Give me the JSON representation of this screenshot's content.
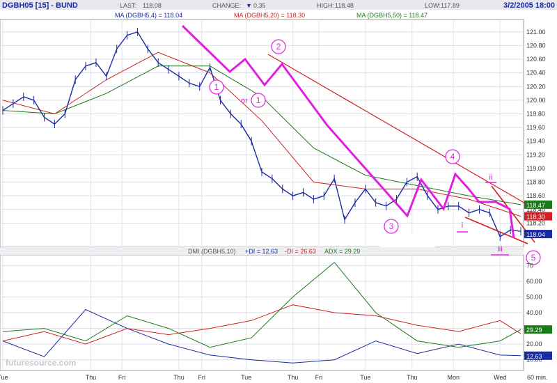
{
  "header": {
    "symbol": "DGBH05 [15] - BUND",
    "last_label": "LAST:",
    "last_value": "118.08",
    "change_label": "CHANGE:",
    "change_arrow": "▼",
    "change_value": "0.35",
    "high_label": "HIGH:",
    "high_value": "118.48",
    "low_label": "LOW:",
    "low_value": "117.89",
    "datetime": "3/2/2005 18:00"
  },
  "price_legend": {
    "ma4": "MA (DGBH5,4) = 118.04",
    "ma20": "MA (DGBH5,20) = 118.30",
    "ma50": "MA (DGBH5,50) = 118.47"
  },
  "dmi_legend": {
    "base": "DMI (DGBH5,10)",
    "pdi": "+DI = 12.63",
    "mdi": "-DI = 26.63",
    "adx": "ADX = 29.29"
  },
  "watermark": "futuresource.com",
  "price_axis": {
    "ticks": [
      "121.00",
      "120.80",
      "120.60",
      "120.40",
      "120.20",
      "120.00",
      "119.80",
      "119.60",
      "119.40",
      "119.20",
      "119.00",
      "118.80",
      "118.60",
      "118.40",
      "118.20"
    ],
    "flags": [
      {
        "label": "118.47",
        "color": "#1a7a1a"
      },
      {
        "label": "118.30",
        "color": "#d02020"
      },
      {
        "label": "118.04",
        "color": "#1a2aa0"
      }
    ]
  },
  "dmi_axis": {
    "ticks": [
      "70",
      "60.00",
      "50.00",
      "40.00",
      "30.00",
      "20.00",
      "10.00"
    ],
    "flags": [
      {
        "label": "29.29",
        "color": "#1a7a1a"
      },
      {
        "label": "12.63",
        "color": "#1a2aa0"
      }
    ]
  },
  "x_axis": {
    "labels": [
      "Tue",
      "Thu",
      "Fri",
      "Thu",
      "Fri",
      "Tue",
      "Thu",
      "Fri",
      "Tue",
      "Thu",
      "Mon",
      "Wed"
    ],
    "interval": "60 min."
  },
  "annotations": {
    "wave1": "1",
    "or_text": "or",
    "wave1_alt": "1",
    "wave2": "2",
    "wave3": "3",
    "wave4": "4",
    "wave5": "5",
    "sub_i": "i",
    "sub_ii": "ii",
    "sub_iii": "iii"
  },
  "colors": {
    "price": "#1a2aa0",
    "ma20": "#d02020",
    "ma50": "#1a7a1a",
    "elliott": "#e020e0",
    "trend": "#d02020"
  },
  "chart_data": [
    {
      "type": "line",
      "title": "DGBH05 [15] - BUND",
      "x_ticks": [
        "Tue",
        "Thu",
        "Fri",
        "Thu",
        "Fri",
        "Tue",
        "Thu",
        "Fri",
        "Tue",
        "Thu",
        "Mon",
        "Wed"
      ],
      "ylim": [
        118.0,
        121.1
      ],
      "series": [
        {
          "name": "DGBH05",
          "x": [
            0,
            1,
            2,
            3,
            4,
            5,
            6,
            7,
            8,
            9,
            10,
            11,
            12,
            13,
            14,
            15,
            16,
            17,
            18,
            19,
            20,
            21,
            22,
            23,
            24,
            25,
            26,
            27,
            28,
            29,
            30,
            31,
            32,
            33,
            34,
            35,
            36,
            37,
            38,
            39,
            40,
            41,
            42,
            43,
            44,
            45,
            46,
            47,
            48,
            49,
            50
          ],
          "values": [
            119.85,
            119.95,
            120.05,
            120.0,
            119.75,
            119.65,
            119.8,
            120.3,
            120.5,
            120.55,
            120.35,
            120.75,
            120.95,
            121.0,
            120.75,
            120.55,
            120.45,
            120.35,
            120.25,
            120.2,
            120.48,
            120.0,
            119.8,
            119.65,
            119.4,
            118.95,
            118.85,
            118.7,
            118.6,
            118.65,
            118.55,
            118.6,
            118.85,
            118.25,
            118.5,
            118.7,
            118.5,
            118.45,
            118.55,
            118.8,
            118.88,
            118.6,
            118.4,
            118.45,
            118.45,
            118.35,
            118.4,
            118.35,
            118.0,
            118.1,
            118.08
          ]
        },
        {
          "name": "MA (DGBH5,20)",
          "x": [
            0,
            5,
            10,
            15,
            20,
            25,
            30,
            35,
            40,
            45,
            50
          ],
          "values": [
            120.0,
            119.8,
            120.3,
            120.7,
            120.4,
            119.7,
            118.8,
            118.7,
            118.7,
            118.55,
            118.3
          ]
        },
        {
          "name": "MA (DGBH5,50)",
          "x": [
            0,
            5,
            10,
            15,
            20,
            25,
            30,
            35,
            40,
            45,
            50
          ],
          "values": [
            119.85,
            119.8,
            120.1,
            120.5,
            120.5,
            120.05,
            119.3,
            118.9,
            118.75,
            118.6,
            118.47
          ]
        }
      ]
    },
    {
      "type": "line",
      "title": "DMI (DGBH5,10)",
      "x_ticks": [
        "Tue",
        "Thu",
        "Fri",
        "Thu",
        "Fri",
        "Tue",
        "Thu",
        "Fri",
        "Tue",
        "Thu",
        "Mon",
        "Wed"
      ],
      "ylim": [
        5,
        75
      ],
      "series": [
        {
          "name": "+DI",
          "x": [
            0,
            4,
            8,
            12,
            16,
            20,
            24,
            28,
            32,
            36,
            40,
            44,
            48,
            50
          ],
          "values": [
            22,
            12,
            42,
            30,
            20,
            13,
            10,
            8,
            10,
            22,
            14,
            20,
            13,
            12.63
          ]
        },
        {
          "name": "-DI",
          "x": [
            0,
            4,
            8,
            12,
            16,
            20,
            24,
            28,
            32,
            36,
            40,
            44,
            48,
            50
          ],
          "values": [
            22,
            28,
            20,
            30,
            26,
            30,
            35,
            45,
            40,
            38,
            32,
            28,
            35,
            26.63
          ]
        },
        {
          "name": "ADX",
          "x": [
            0,
            4,
            8,
            12,
            16,
            20,
            24,
            28,
            32,
            36,
            40,
            44,
            48,
            50
          ],
          "values": [
            28,
            30,
            22,
            38,
            30,
            18,
            24,
            50,
            72,
            40,
            22,
            18,
            22,
            29.29
          ]
        }
      ]
    }
  ]
}
